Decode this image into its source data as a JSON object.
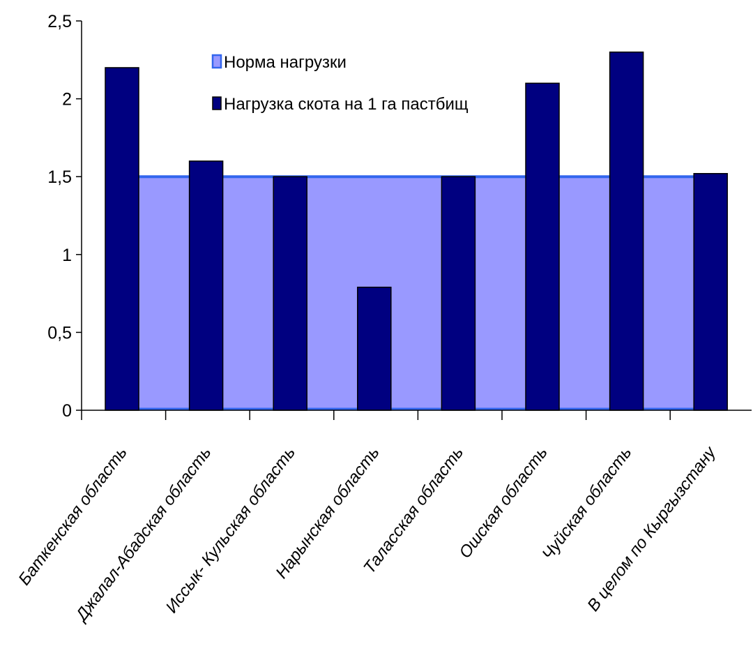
{
  "chart_data": {
    "type": "bar",
    "categories": [
      "Баткенская область",
      "Джалал-Абадская область",
      "Иссык- Кульская область",
      "Нарынская область",
      "Таласская область",
      "Ошская область",
      "Чуйская область",
      "В целом по Кыргызстану"
    ],
    "series": [
      {
        "name": "Нагрузка скота на 1 га пастбищ",
        "values": [
          2.2,
          1.6,
          1.5,
          0.79,
          1.5,
          2.1,
          2.3,
          1.52
        ],
        "color": "#000080"
      }
    ],
    "norm": {
      "name": "Норма нагрузки",
      "value": 1.5,
      "fill_color": "#9999ff",
      "line_color": "#3366ee"
    },
    "ylim": [
      0,
      2.5
    ],
    "yticks": [
      0,
      0.5,
      1,
      1.5,
      2,
      2.5
    ],
    "ytick_labels": [
      "0",
      "0,5",
      "1",
      "1,5",
      "2",
      "2,5"
    ],
    "grid": false,
    "legend_position": "top-center"
  }
}
